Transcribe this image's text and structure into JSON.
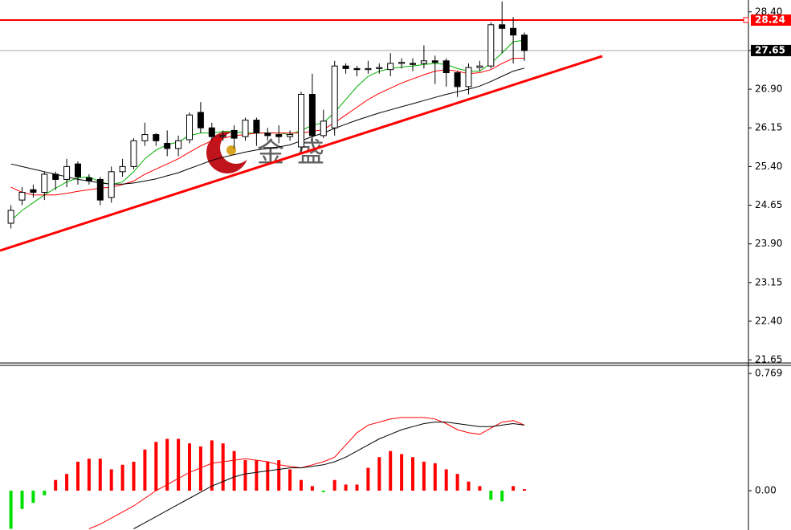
{
  "chart_data": [
    {
      "type": "candlestick",
      "open": [
        24.3,
        24.75,
        24.95,
        24.9,
        25.25,
        25.15,
        25.45,
        25.18,
        25.15,
        24.8,
        25.3,
        25.4,
        25.9,
        26.02,
        25.85,
        25.75,
        25.92,
        26.45,
        26.15,
        25.98,
        26.1,
        25.98,
        26.3,
        26.05,
        26.02,
        25.98,
        25.78,
        26.8,
        26.0,
        26.15,
        27.35,
        27.3,
        27.28,
        27.3,
        27.28,
        27.4,
        27.4,
        27.4,
        27.45,
        27.45,
        27.22,
        26.95,
        27.32,
        27.35,
        28.15,
        28.08,
        27.95
      ],
      "high": [
        24.65,
        25.0,
        25.05,
        25.3,
        25.3,
        25.55,
        25.5,
        25.25,
        25.2,
        25.4,
        25.55,
        25.95,
        26.25,
        26.05,
        26.1,
        26.0,
        26.45,
        26.65,
        26.25,
        26.1,
        26.2,
        26.35,
        26.35,
        26.15,
        26.2,
        26.1,
        26.85,
        27.2,
        26.5,
        27.45,
        27.4,
        27.35,
        27.45,
        27.4,
        27.6,
        27.5,
        27.5,
        27.75,
        27.55,
        27.5,
        27.25,
        27.4,
        27.45,
        28.2,
        28.6,
        28.3,
        28.0
      ],
      "low": [
        24.2,
        24.65,
        24.8,
        24.75,
        24.95,
        25.0,
        25.05,
        25.05,
        24.65,
        24.7,
        25.2,
        25.35,
        25.8,
        25.8,
        25.6,
        25.6,
        25.85,
        26.05,
        25.9,
        25.9,
        25.75,
        25.9,
        25.8,
        25.9,
        25.85,
        25.9,
        25.7,
        25.9,
        25.95,
        26.0,
        27.2,
        27.15,
        27.2,
        27.2,
        27.15,
        27.3,
        27.25,
        27.3,
        27.0,
        26.95,
        26.75,
        26.8,
        27.25,
        27.3,
        27.6,
        27.4,
        27.45
      ],
      "close": [
        24.55,
        24.9,
        24.9,
        25.25,
        25.15,
        25.4,
        25.2,
        25.12,
        24.75,
        25.3,
        25.4,
        25.9,
        26.02,
        25.9,
        25.75,
        25.9,
        26.4,
        26.15,
        25.98,
        26.0,
        25.95,
        26.3,
        26.05,
        26.0,
        25.98,
        26.02,
        26.8,
        26.0,
        26.28,
        27.35,
        27.3,
        27.28,
        27.3,
        27.32,
        27.4,
        27.42,
        27.38,
        27.45,
        27.42,
        27.22,
        26.95,
        27.32,
        27.35,
        28.15,
        28.08,
        27.95,
        27.65
      ],
      "series": [
        {
          "color": "#00b000",
          "values": [
            24.35,
            24.55,
            24.7,
            24.85,
            24.98,
            25.1,
            25.18,
            25.2,
            25.1,
            25.05,
            25.1,
            25.3,
            25.55,
            25.72,
            25.82,
            25.88,
            26.0,
            26.05,
            26.05,
            26.08,
            26.08,
            26.05,
            26.05,
            26.05,
            26.05,
            26.02,
            26.1,
            26.2,
            26.25,
            26.45,
            26.7,
            26.95,
            27.15,
            27.25,
            27.3,
            27.33,
            27.35,
            27.38,
            27.4,
            27.38,
            27.3,
            27.25,
            27.25,
            27.4,
            27.6,
            27.82,
            27.85
          ]
        },
        {
          "color": "#ff0000",
          "values": [
            25.0,
            24.9,
            24.85,
            24.85,
            24.85,
            24.88,
            24.92,
            24.95,
            24.98,
            25.0,
            25.05,
            25.12,
            25.25,
            25.35,
            25.45,
            25.55,
            25.68,
            25.8,
            25.9,
            25.95,
            26.0,
            26.02,
            26.05,
            26.05,
            26.05,
            26.05,
            26.05,
            26.08,
            26.12,
            26.25,
            26.4,
            26.55,
            26.7,
            26.82,
            26.92,
            27.02,
            27.1,
            27.18,
            27.25,
            27.28,
            27.25,
            27.2,
            27.22,
            27.28,
            27.4,
            27.5,
            27.5
          ]
        },
        {
          "color": "#000000",
          "values": [
            25.45,
            25.4,
            25.35,
            25.3,
            25.25,
            25.2,
            25.15,
            25.12,
            25.08,
            25.06,
            25.06,
            25.08,
            25.12,
            25.16,
            25.22,
            25.28,
            25.36,
            25.44,
            25.52,
            25.58,
            25.63,
            25.68,
            25.72,
            25.75,
            25.78,
            25.82,
            25.9,
            25.98,
            26.05,
            26.14,
            26.22,
            26.3,
            26.37,
            26.44,
            26.5,
            26.56,
            26.62,
            26.68,
            26.74,
            26.8,
            26.85,
            26.9,
            26.96,
            27.05,
            27.15,
            27.25,
            27.31
          ]
        }
      ],
      "hlines": [
        {
          "value": 28.24,
          "color": "#ff0000"
        },
        {
          "value": 27.65,
          "color": "#000000"
        }
      ],
      "trendline": [
        23.77,
        27.54
      ],
      "watermark": "金盛",
      "ylim": [
        21.59,
        28.63
      ],
      "yticks": [
        21.65,
        {
          "value": 22.4,
          "label": "22.40"
        },
        23.15,
        {
          "value": 23.9,
          "label": "23.90"
        },
        24.65,
        {
          "value": 25.4,
          "label": "25.40"
        },
        26.15,
        {
          "value": 26.9,
          "label": "26.90"
        },
        27.65,
        {
          "value": 28.4,
          "label": "28.40"
        }
      ]
    },
    {
      "type": "macd",
      "values": [
        -0.25,
        -0.12,
        -0.08,
        -0.03,
        0.07,
        0.11,
        0.19,
        0.21,
        0.21,
        0.14,
        0.17,
        0.19,
        0.27,
        0.32,
        0.34,
        0.34,
        0.31,
        0.29,
        0.33,
        0.31,
        0.26,
        0.2,
        0.2,
        0.19,
        0.2,
        0.14,
        0.07,
        0.03,
        -0.01,
        0.07,
        0.04,
        0.04,
        0.15,
        0.22,
        0.26,
        0.24,
        0.22,
        0.19,
        0.18,
        0.14,
        0.11,
        0.06,
        0.03,
        -0.06,
        -0.07,
        0.03,
        0.01
      ],
      "up_color": "#ff0000",
      "down_color": "#00e000",
      "series": [
        {
          "color": "#ff0000",
          "values": [
            null,
            null,
            null,
            null,
            null,
            null,
            null,
            -0.25,
            -0.22,
            -0.18,
            -0.14,
            -0.1,
            -0.05,
            0.0,
            0.04,
            0.08,
            0.12,
            0.15,
            0.18,
            0.19,
            0.2,
            0.21,
            0.2,
            0.19,
            0.17,
            0.16,
            0.15,
            0.17,
            0.19,
            0.22,
            0.3,
            0.38,
            0.43,
            0.45,
            0.47,
            0.48,
            0.48,
            0.48,
            0.47,
            0.44,
            0.4,
            0.38,
            0.37,
            0.41,
            0.45,
            0.46,
            0.43
          ]
        },
        {
          "color": "#000000",
          "values": [
            null,
            null,
            null,
            null,
            null,
            null,
            null,
            null,
            null,
            null,
            null,
            -0.25,
            -0.21,
            -0.17,
            -0.13,
            -0.09,
            -0.05,
            -0.01,
            0.03,
            0.06,
            0.09,
            0.11,
            0.12,
            0.13,
            0.14,
            0.15,
            0.15,
            0.16,
            0.17,
            0.19,
            0.22,
            0.26,
            0.3,
            0.34,
            0.37,
            0.4,
            0.42,
            0.44,
            0.45,
            0.45,
            0.44,
            0.43,
            0.42,
            0.42,
            0.43,
            0.44,
            0.43
          ]
        }
      ],
      "ylim": [
        -0.258,
        0.822
      ],
      "yticks": [
        {
          "value": 0,
          "label": "0.00"
        },
        0.769
      ]
    }
  ]
}
